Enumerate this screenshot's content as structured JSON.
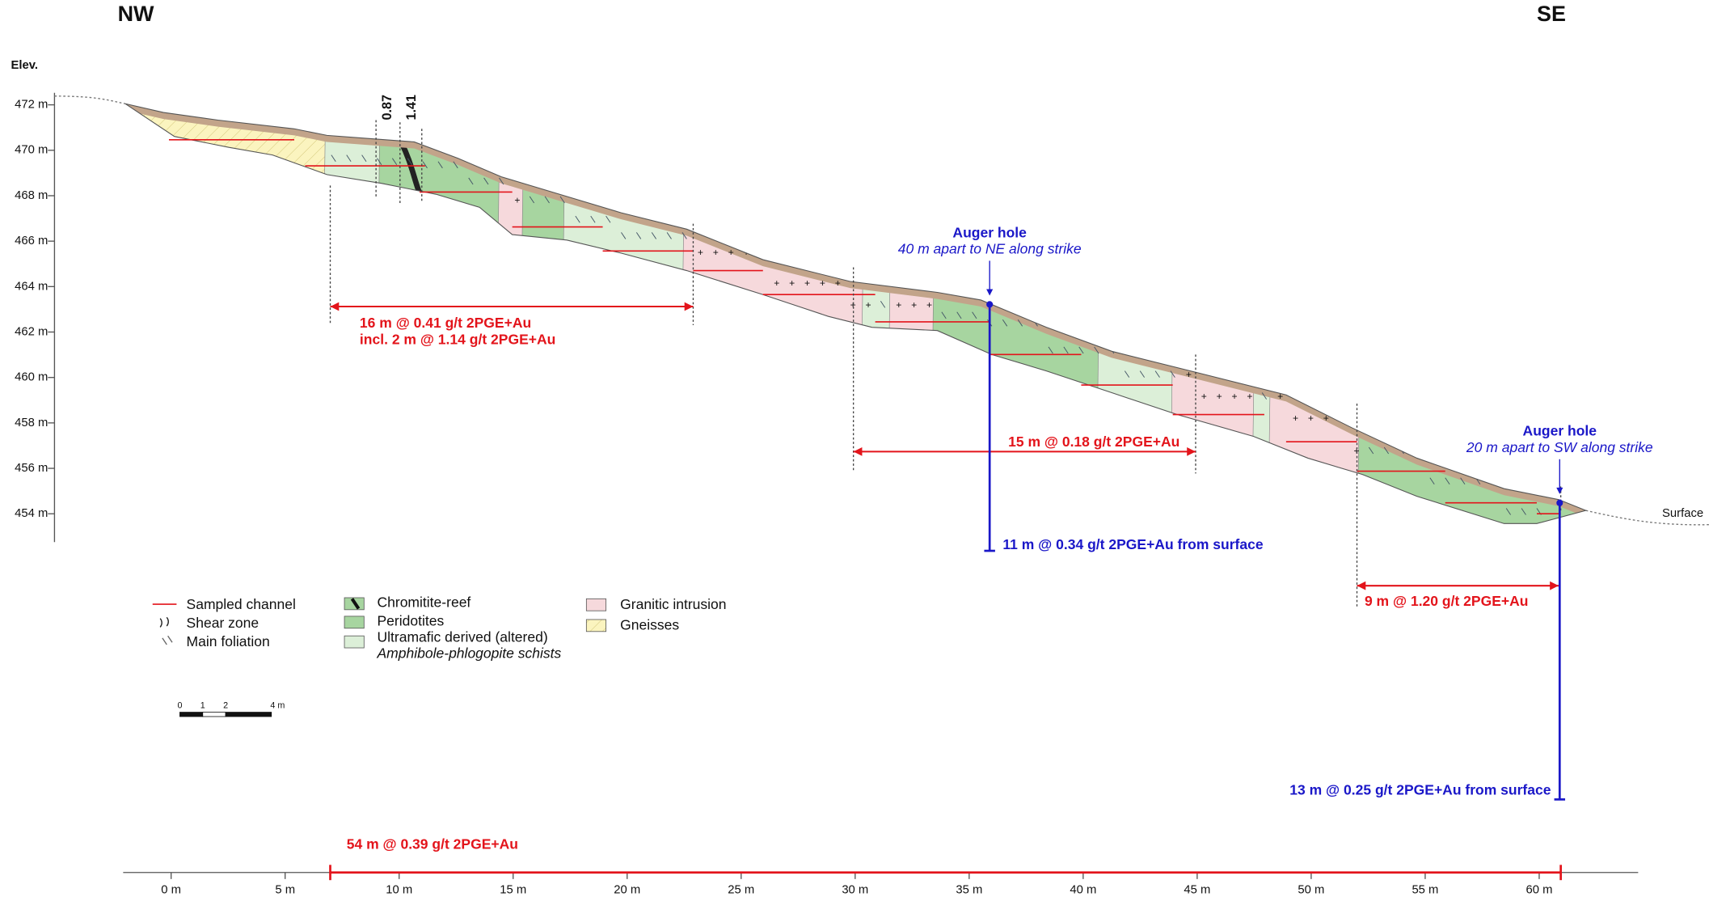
{
  "header": {
    "left": "NW",
    "right": "SE"
  },
  "elevation_axis": {
    "title": "Elev.",
    "ticks": [
      "472 m",
      "470 m",
      "468 m",
      "466 m",
      "464 m",
      "462 m",
      "460 m",
      "458 m",
      "456 m",
      "454 m"
    ]
  },
  "distance_axis": {
    "ticks": [
      "0 m",
      "5 m",
      "10 m",
      "15 m",
      "20 m",
      "25 m",
      "30 m",
      "35 m",
      "40 m",
      "45 m",
      "50 m",
      "55 m",
      "60 m"
    ]
  },
  "column_labels": [
    "0.87",
    "1.41"
  ],
  "surface_label": "Surface",
  "auger_holes": [
    {
      "title": "Auger hole",
      "note": "40 m apart to NE along strike",
      "result": "11 m @ 0.34 g/t 2PGE+Au from surface"
    },
    {
      "title": "Auger hole",
      "note": "20 m apart to SW along strike",
      "result": "13 m @ 0.25 g/t 2PGE+Au from surface"
    }
  ],
  "intervals": [
    "16 m @ 0.41 g/t 2PGE+Au",
    "incl. 2 m @ 1.14 g/t 2PGE+Au",
    "15 m @ 0.18 g/t 2PGE+Au",
    "9 m @ 1.20 g/t 2PGE+Au",
    "54 m @ 0.39 g/t 2PGE+Au"
  ],
  "legend": {
    "symbols": [
      "Sampled channel",
      "Shear zone",
      "Main foliation"
    ],
    "units": [
      "Chromitite-reef",
      "Peridotites",
      "Ultramafic derived (altered)",
      "Amphibole-phlogopite schists",
      "Granitic intrusion",
      "Gneisses"
    ]
  },
  "scale_bar": [
    "0",
    "1",
    "2",
    "4 m"
  ]
}
